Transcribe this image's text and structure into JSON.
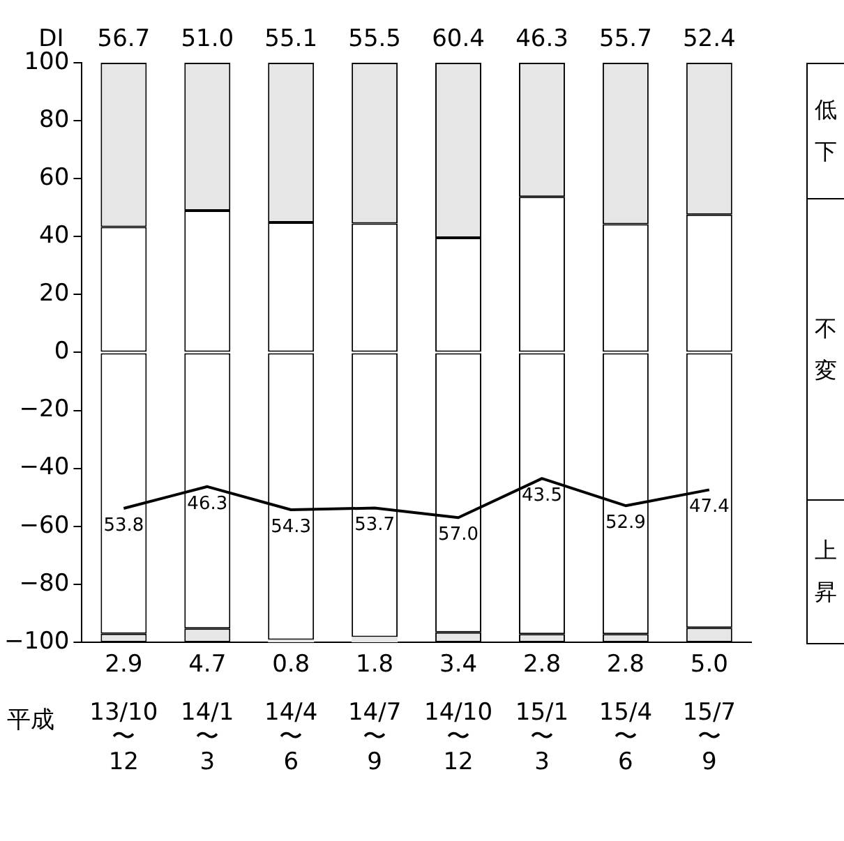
{
  "chart_data": {
    "type": "bar",
    "ylabel": "DI",
    "xlabel": "平成",
    "categories": [
      "13/10〜12",
      "14/1〜3",
      "14/4〜6",
      "14/7〜9",
      "14/10〜12",
      "15/1〜3",
      "15/4〜6",
      "15/7〜9"
    ],
    "series": [
      {
        "color": "#e6e6e6",
        "base": [
          -100,
          -100,
          -100,
          -100,
          -100,
          -100,
          -100,
          -100
        ],
        "values": [
          2.9,
          4.7,
          0.8,
          1.8,
          3.4,
          2.8,
          2.8,
          5.0
        ],
        "value_labels": [
          "2.9",
          "4.7",
          "0.8",
          "1.8",
          "3.4",
          "2.8",
          "2.8",
          "5.0"
        ]
      },
      {
        "color": "#ffffff",
        "base": [
          -97.1,
          -95.3,
          -99.2,
          -98.2,
          -96.6,
          -97.2,
          -97.2,
          -95.0
        ],
        "values": [
          97.1,
          95.3,
          99.2,
          98.2,
          96.6,
          97.2,
          97.2,
          95.0
        ]
      },
      {
        "color": "#ffffff",
        "base": [
          0,
          0,
          0,
          0,
          0,
          0,
          0,
          0
        ],
        "values": [
          43.3,
          49.0,
          44.9,
          44.5,
          39.6,
          53.7,
          44.3,
          47.6
        ]
      },
      {
        "color": "#e6e6e6",
        "base": [
          43.3,
          49.0,
          44.9,
          44.5,
          39.6,
          53.7,
          44.3,
          47.6
        ],
        "values": [
          56.7,
          51.0,
          55.1,
          55.5,
          60.4,
          46.3,
          55.7,
          52.4
        ],
        "value_labels": [
          "56.7",
          "51.0",
          "55.1",
          "55.5",
          "60.4",
          "46.3",
          "55.7",
          "52.4"
        ]
      },
      {
        "type": "line",
        "color": "#000000",
        "values": [
          -53.8,
          -46.3,
          -54.3,
          -53.7,
          -57.0,
          -43.5,
          -52.9,
          -47.4
        ]
      }
    ],
    "ylim": [
      -100,
      100
    ],
    "yticks": [
      -100,
      -80,
      -60,
      -40,
      -20,
      0,
      20,
      40,
      60,
      80,
      100
    ],
    "grid": false,
    "legend": false,
    "marker": "none",
    "line_style": "solid",
    "annotations": [
      "低下",
      "不変",
      "上昇",
      {
        "text": "53.8",
        "x": "13/10〜12",
        "y": -53.8
      },
      {
        "text": "46.3",
        "x": "14/1〜3",
        "y": -46.3
      },
      {
        "text": "54.3",
        "x": "14/4〜6",
        "y": -54.3
      },
      {
        "text": "53.7",
        "x": "14/7〜9",
        "y": -53.7
      },
      {
        "text": "57.0",
        "x": "14/10〜12",
        "y": -57.0
      },
      {
        "text": "43.5",
        "x": "15/1〜3",
        "y": -43.5
      },
      {
        "text": "52.9",
        "x": "15/4〜6",
        "y": -52.9
      },
      {
        "text": "47.4",
        "x": "15/7〜9",
        "y": -47.4
      }
    ]
  }
}
